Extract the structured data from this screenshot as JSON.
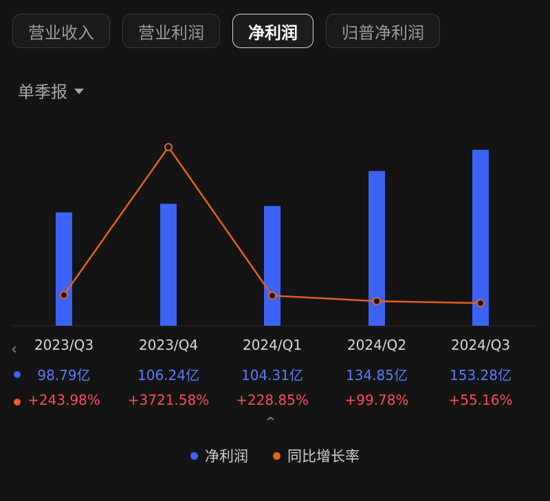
{
  "tabs": [
    {
      "label": "营业收入",
      "active": false
    },
    {
      "label": "营业利润",
      "active": false
    },
    {
      "label": "净利润",
      "active": true
    },
    {
      "label": "归普净利润",
      "active": false
    }
  ],
  "period_selector": {
    "label": "单季报"
  },
  "colors": {
    "bar": "#3d63f5",
    "line": "#e8611c",
    "value_text": "#5a7dff",
    "growth_text": "#ff4a5a"
  },
  "chart_data": {
    "type": "bar",
    "categories": [
      "2023/Q3",
      "2023/Q4",
      "2024/Q1",
      "2024/Q2",
      "2024/Q3"
    ],
    "series": [
      {
        "name": "净利润",
        "type": "bar",
        "values": [
          98.79,
          106.24,
          104.31,
          134.85,
          153.28
        ],
        "labels": [
          "98.79亿",
          "106.24亿",
          "104.31亿",
          "134.85亿",
          "153.28亿"
        ]
      },
      {
        "name": "同比增长率",
        "type": "line",
        "values": [
          243.98,
          3721.58,
          228.85,
          99.78,
          55.16
        ],
        "labels": [
          "+243.98%",
          "+3721.58%",
          "+228.85%",
          "+99.78%",
          "+55.16%"
        ]
      }
    ],
    "legend": [
      "净利润",
      "同比增长率"
    ]
  }
}
